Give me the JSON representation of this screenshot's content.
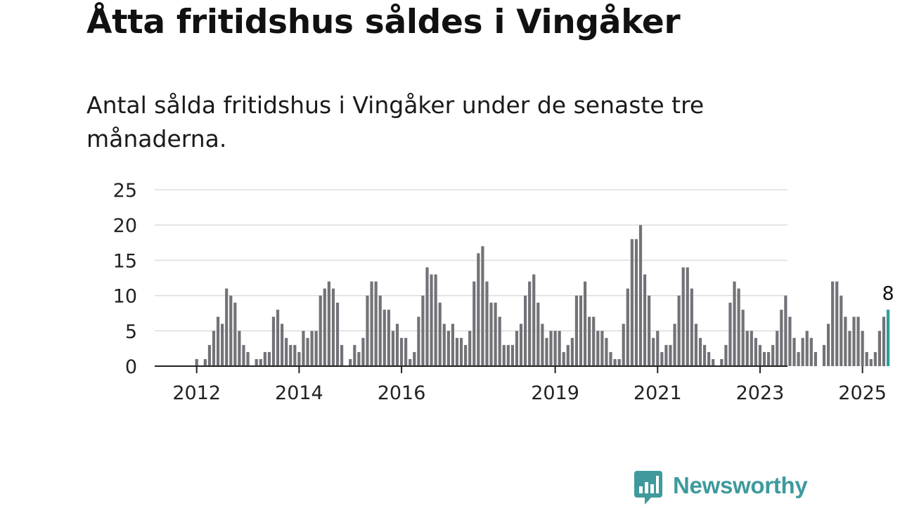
{
  "chart_data": {
    "type": "bar",
    "title": "Åtta fritidshus såldes i Vingåker",
    "subtitle": "Antal sålda fritidshus i Vingåker under de senaste tre månaderna.",
    "xlabel": "",
    "ylabel": "",
    "ylim": [
      0,
      25
    ],
    "yticks": [
      "0",
      "5",
      "10",
      "15",
      "20",
      "25"
    ],
    "grid": true,
    "legend": "none",
    "x_start": "2011-10",
    "x_end": "2025-05",
    "xticks": [
      {
        "label": "2012",
        "date": "2012-01"
      },
      {
        "label": "2014",
        "date": "2014-01"
      },
      {
        "label": "2016",
        "date": "2016-01"
      },
      {
        "label": "2019",
        "date": "2019-01"
      },
      {
        "label": "2021",
        "date": "2021-01"
      },
      {
        "label": "2023",
        "date": "2023-01"
      },
      {
        "label": "2025",
        "date": "2025-01"
      }
    ],
    "bar_color": "#737278",
    "highlight_color": "#2a9d99",
    "highlight_label": "8",
    "series": [
      {
        "values": [
          0,
          0,
          0,
          1,
          0,
          1,
          3,
          5,
          7,
          6,
          11,
          10,
          9,
          5,
          3,
          2,
          0,
          1,
          1,
          2,
          2,
          7,
          8,
          6,
          4,
          3,
          3,
          2,
          5,
          4,
          5,
          5,
          10,
          11,
          12,
          11,
          9,
          3,
          0,
          1,
          3,
          2,
          4,
          10,
          12,
          12,
          10,
          8,
          8,
          5,
          6,
          4,
          4,
          1,
          2,
          7,
          10,
          14,
          13,
          13,
          9,
          6,
          5,
          6,
          4,
          4,
          3,
          5,
          12,
          16,
          17,
          12,
          9,
          9,
          7,
          3,
          3,
          3,
          5,
          6,
          10,
          12,
          13,
          9,
          6,
          4,
          5,
          5,
          5,
          2,
          3,
          4,
          10,
          10,
          12,
          7,
          7,
          5,
          5,
          4,
          2,
          1,
          1,
          6,
          11,
          18,
          18,
          20,
          13,
          10,
          4,
          5,
          2,
          3,
          3,
          6,
          10,
          14,
          14,
          11,
          6,
          4,
          3,
          2,
          1,
          0,
          1,
          3,
          9,
          12,
          11,
          8,
          5,
          5,
          4,
          3,
          2,
          2,
          3,
          5,
          8,
          10,
          7,
          4,
          2,
          4,
          5,
          4,
          2,
          0,
          3,
          6,
          12,
          12,
          10,
          7,
          5,
          7,
          7,
          5,
          2,
          1,
          2,
          5,
          7,
          8
        ]
      }
    ]
  },
  "brand": {
    "name": "Newsworthy",
    "logo_icon": "newsworthy-logo-icon"
  }
}
